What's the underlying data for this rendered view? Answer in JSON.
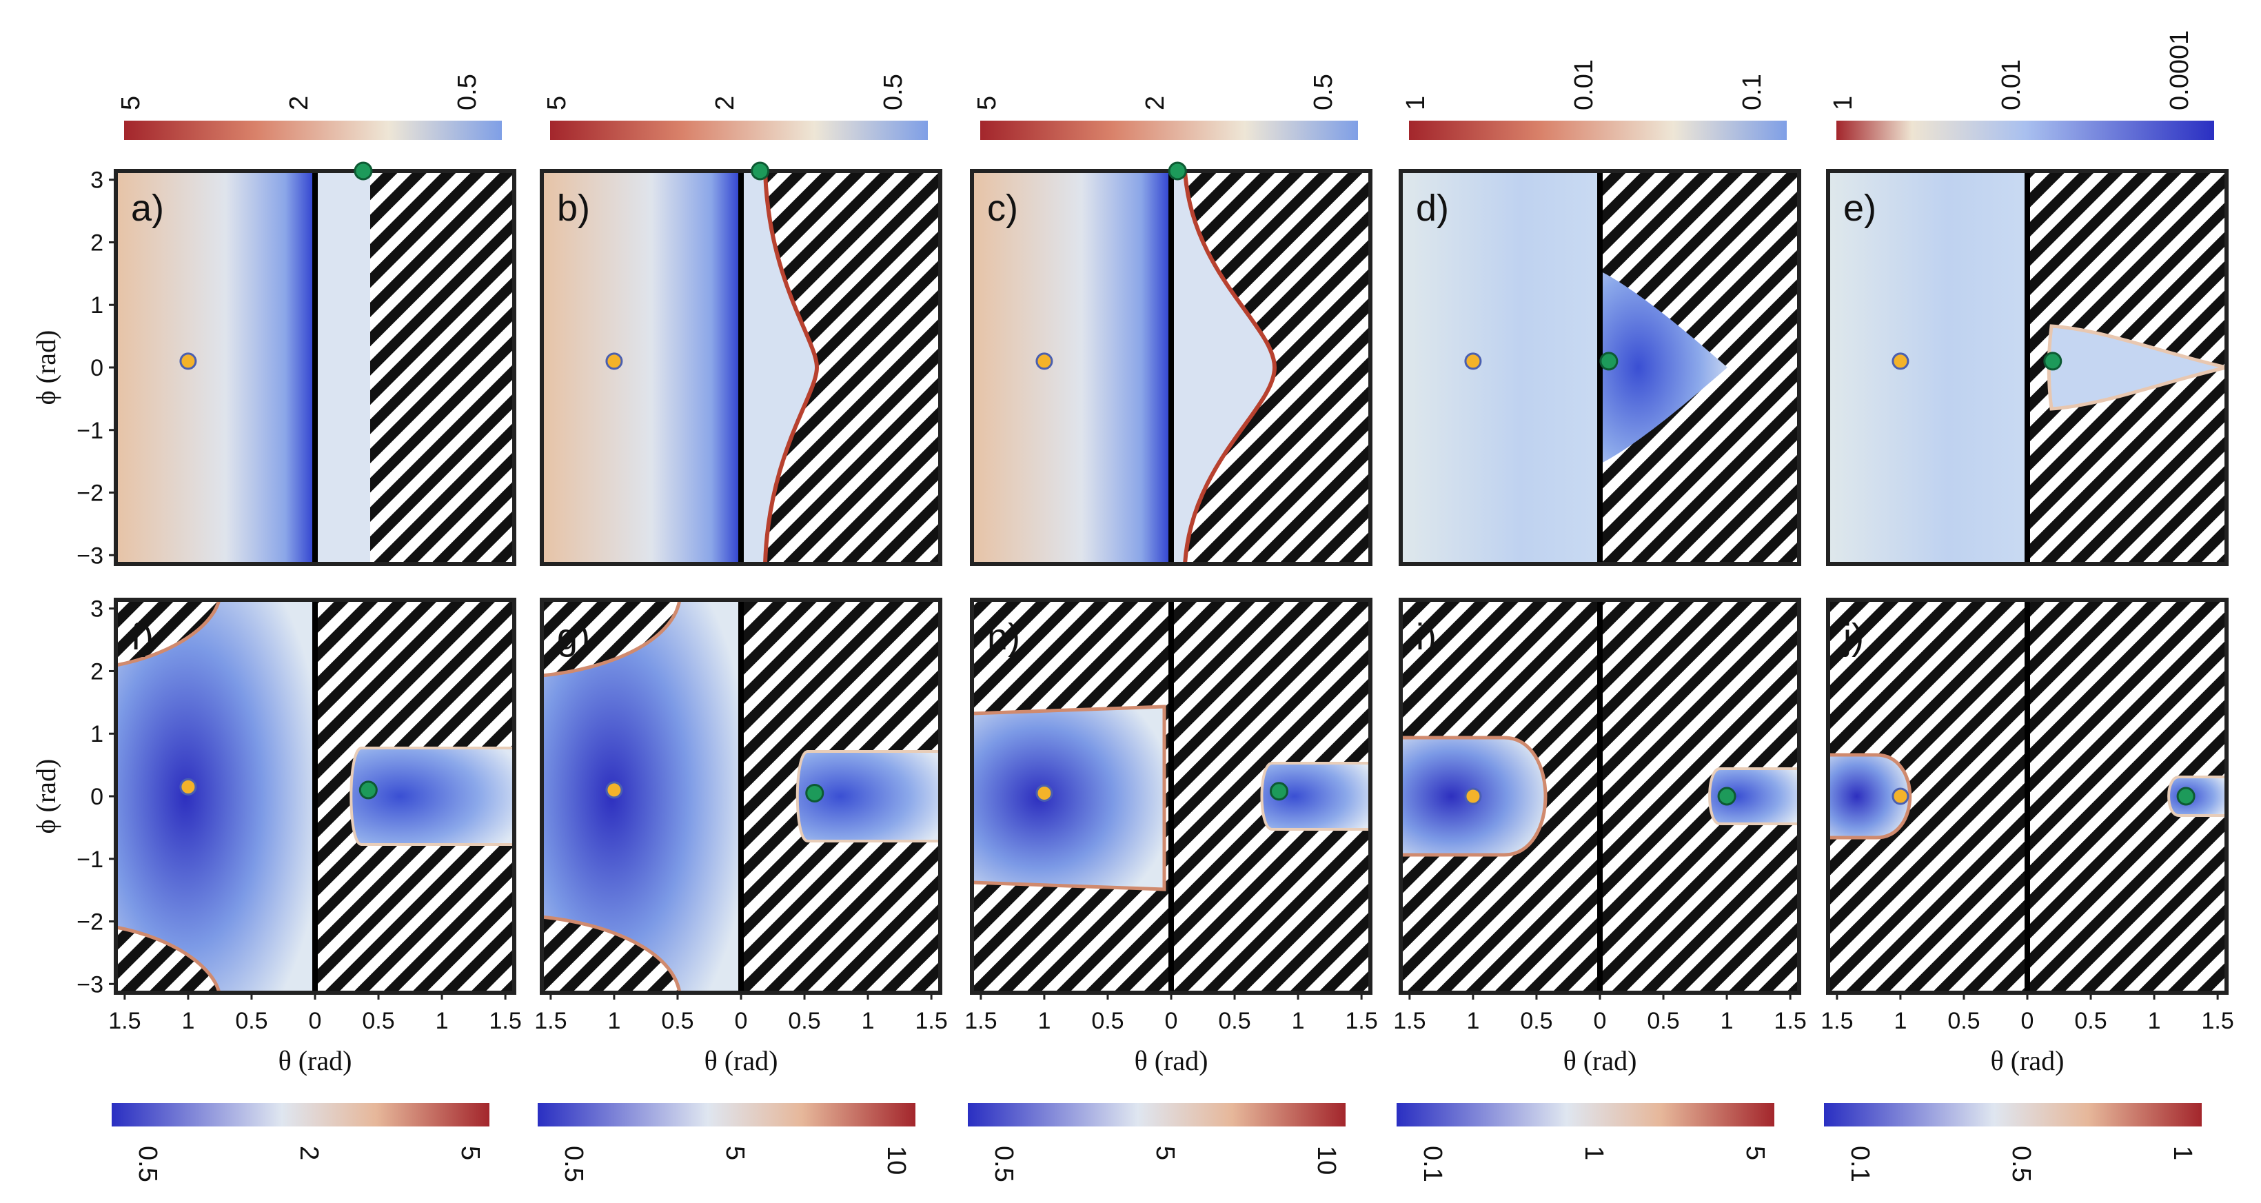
{
  "chart_data": {
    "type": "heatmap",
    "title": "",
    "xlabel": "θ (rad)",
    "ylabel": "ϕ (rad)",
    "x_ticks": [
      "1.5",
      "1",
      "0.5",
      "0",
      "0.5",
      "1",
      "1.5"
    ],
    "y_ticks": [
      "3",
      "2",
      "1",
      "0",
      "−1",
      "−2",
      "−3"
    ],
    "xlim": [
      -1.57,
      1.57
    ],
    "ylim": [
      -3.14,
      3.14
    ],
    "top_colorbars": [
      {
        "panel": "a-f column 1",
        "ticks": [
          "5",
          "2",
          "0.5"
        ]
      },
      {
        "panel": "column 2",
        "ticks": [
          "5",
          "2",
          "0.5"
        ]
      },
      {
        "panel": "column 3",
        "ticks": [
          "5",
          "2",
          "0.5"
        ]
      },
      {
        "panel": "column 4",
        "ticks": [
          "1",
          "0.01",
          "0.1"
        ]
      },
      {
        "panel": "column 5",
        "ticks": [
          "1",
          "0.01",
          "0.0001"
        ]
      }
    ],
    "bottom_colorbars": [
      {
        "panel": "column 1",
        "ticks": [
          "0.5",
          "2",
          "5"
        ]
      },
      {
        "panel": "column 2",
        "ticks": [
          "0.5",
          "5",
          "10"
        ]
      },
      {
        "panel": "column 3",
        "ticks": [
          "0.5",
          "5",
          "10"
        ]
      },
      {
        "panel": "column 4",
        "ticks": [
          "0.1",
          "1",
          "5"
        ]
      },
      {
        "panel": "column 5",
        "ticks": [
          "0.1",
          "0.5",
          "1"
        ]
      }
    ],
    "panels": [
      {
        "label": "a)",
        "row": 0,
        "col": 0,
        "yellow": [
          -1.0,
          0.1
        ],
        "green": [
          0.38,
          3.14
        ]
      },
      {
        "label": "b)",
        "row": 0,
        "col": 1,
        "yellow": [
          -1.0,
          0.1
        ],
        "green": [
          0.15,
          3.14
        ]
      },
      {
        "label": "c)",
        "row": 0,
        "col": 2,
        "yellow": [
          -1.0,
          0.1
        ],
        "green": [
          0.05,
          3.14
        ]
      },
      {
        "label": "d)",
        "row": 0,
        "col": 3,
        "yellow": [
          -1.0,
          0.1
        ],
        "green": [
          0.07,
          0.1
        ]
      },
      {
        "label": "e)",
        "row": 0,
        "col": 4,
        "yellow": [
          -1.0,
          0.1
        ],
        "green": [
          0.2,
          0.1
        ]
      },
      {
        "label": "f)",
        "row": 1,
        "col": 0,
        "yellow": [
          -1.0,
          0.15
        ],
        "green": [
          0.42,
          0.1
        ]
      },
      {
        "label": "g)",
        "row": 1,
        "col": 1,
        "yellow": [
          -1.0,
          0.1
        ],
        "green": [
          0.58,
          0.05
        ]
      },
      {
        "label": "h)",
        "row": 1,
        "col": 2,
        "yellow": [
          -1.0,
          0.05
        ],
        "green": [
          0.85,
          0.08
        ]
      },
      {
        "label": "i)",
        "row": 1,
        "col": 3,
        "yellow": [
          -1.0,
          0.0
        ],
        "green": [
          1.0,
          0.0
        ]
      },
      {
        "label": "j)",
        "row": 1,
        "col": 4,
        "yellow": [
          -1.0,
          0.0
        ],
        "green": [
          1.25,
          0.0
        ]
      }
    ]
  }
}
